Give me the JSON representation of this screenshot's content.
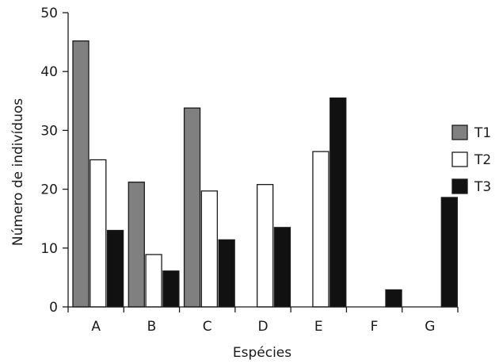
{
  "chart_data": {
    "type": "bar",
    "title": "",
    "xlabel": "Espécies",
    "ylabel": "Número de indivíduos",
    "categories": [
      "A",
      "B",
      "C",
      "D",
      "E",
      "F",
      "G"
    ],
    "series": [
      {
        "name": "T1",
        "color": "#808080",
        "values": [
          45.2,
          21.2,
          33.8,
          0,
          0,
          0,
          0
        ]
      },
      {
        "name": "T2",
        "color": "#ffffff",
        "values": [
          25.0,
          8.9,
          19.7,
          20.8,
          26.4,
          0,
          0
        ]
      },
      {
        "name": "T3",
        "color": "#111111",
        "values": [
          13.0,
          6.1,
          11.4,
          13.5,
          35.5,
          2.9,
          18.6
        ]
      }
    ],
    "ylim": [
      0,
      50
    ],
    "yticks": [
      0,
      10,
      20,
      30,
      40,
      50
    ],
    "grid": false,
    "legend_position": "right"
  }
}
